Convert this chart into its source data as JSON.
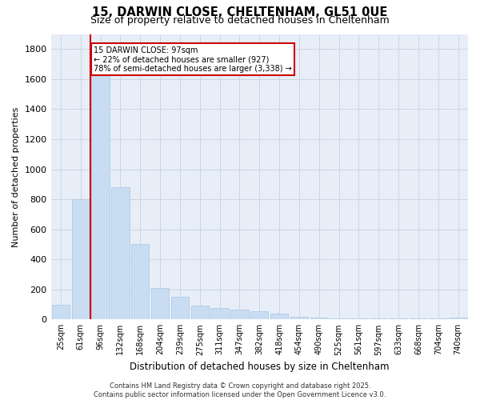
{
  "title": "15, DARWIN CLOSE, CHELTENHAM, GL51 0UE",
  "subtitle": "Size of property relative to detached houses in Cheltenham",
  "xlabel": "Distribution of detached houses by size in Cheltenham",
  "ylabel": "Number of detached properties",
  "categories": [
    "25sqm",
    "61sqm",
    "96sqm",
    "132sqm",
    "168sqm",
    "204sqm",
    "239sqm",
    "275sqm",
    "311sqm",
    "347sqm",
    "382sqm",
    "418sqm",
    "454sqm",
    "490sqm",
    "525sqm",
    "561sqm",
    "597sqm",
    "633sqm",
    "668sqm",
    "704sqm",
    "740sqm"
  ],
  "values": [
    100,
    800,
    1680,
    880,
    500,
    210,
    150,
    90,
    75,
    65,
    55,
    40,
    15,
    10,
    5,
    5,
    5,
    5,
    5,
    5,
    10
  ],
  "bar_color": "#c9ddf2",
  "bar_edge_color": "#aac4e0",
  "grid_color": "#ccd5e3",
  "background_color": "#e8eef8",
  "vline_color": "#cc0000",
  "annotation_text": "15 DARWIN CLOSE: 97sqm\n← 22% of detached houses are smaller (927)\n78% of semi-detached houses are larger (3,338) →",
  "annotation_box_color": "#ffffff",
  "annotation_edge_color": "#cc0000",
  "footer": "Contains HM Land Registry data © Crown copyright and database right 2025.\nContains public sector information licensed under the Open Government Licence v3.0.",
  "ylim": [
    0,
    1900
  ],
  "yticks": [
    0,
    200,
    400,
    600,
    800,
    1000,
    1200,
    1400,
    1600,
    1800
  ]
}
